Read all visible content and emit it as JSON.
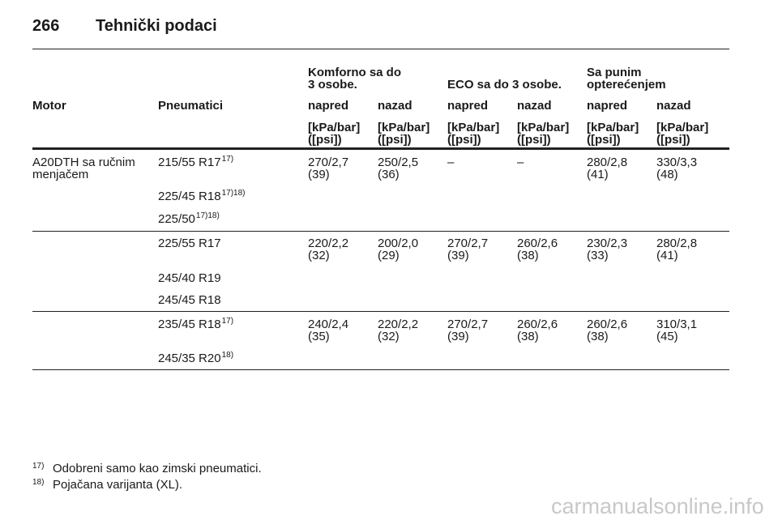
{
  "header": {
    "page_number": "266",
    "title": "Tehnički podaci"
  },
  "table": {
    "group_headers": [
      [
        "Komforno sa do",
        "3 osobe."
      ],
      [
        "ECO sa do 3 osobe."
      ],
      [
        "Sa punim",
        "opterećenjem"
      ]
    ],
    "columns": [
      "Motor",
      "Pneumatici",
      "napred",
      "nazad",
      "napred",
      "nazad",
      "napred",
      "nazad"
    ],
    "units": [
      [
        "[kPa/bar]",
        "([psi])"
      ],
      [
        "[kPa/bar]",
        "([psi])"
      ],
      [
        "[kPa/bar]",
        "([psi])"
      ],
      [
        "[kPa/bar]",
        "([psi])"
      ],
      [
        "[kPa/bar]",
        "([psi])"
      ],
      [
        "[kPa/bar]",
        "([psi])"
      ]
    ],
    "groups": [
      {
        "motor": [
          "A20DTH sa ručnim",
          "menjačem"
        ],
        "tires": [
          {
            "text": "215/55 R17",
            "note": "17)"
          },
          {
            "text": "225/45 R18",
            "note": "17)18)"
          },
          {
            "text": "225/50",
            "note": "17)18)"
          }
        ],
        "values": [
          [
            "270/2,7",
            "(39)"
          ],
          [
            "250/2,5",
            "(36)"
          ],
          [
            "–"
          ],
          [
            "–"
          ],
          [
            "280/2,8",
            "(41)"
          ],
          [
            "330/3,3",
            "(48)"
          ]
        ]
      },
      {
        "tires": [
          {
            "text": "225/55 R17"
          },
          {
            "text": "245/40 R19"
          },
          {
            "text": "245/45 R18"
          }
        ],
        "values": [
          [
            "220/2,2",
            "(32)"
          ],
          [
            "200/2,0",
            "(29)"
          ],
          [
            "270/2,7",
            "(39)"
          ],
          [
            "260/2,6",
            "(38)"
          ],
          [
            "230/2,3",
            "(33)"
          ],
          [
            "280/2,8",
            "(41)"
          ]
        ]
      },
      {
        "tires": [
          {
            "text": "235/45 R18",
            "note": "17)"
          },
          {
            "text": "245/35 R20",
            "note": "18)"
          }
        ],
        "values": [
          [
            "240/2,4",
            "(35)"
          ],
          [
            "220/2,2",
            "(32)"
          ],
          [
            "270/2,7",
            "(39)"
          ],
          [
            "260/2,6",
            "(38)"
          ],
          [
            "260/2,6",
            "(38)"
          ],
          [
            "310/3,1",
            "(45)"
          ]
        ]
      }
    ]
  },
  "footnotes": [
    {
      "mark": "17)",
      "text": "Odobreni samo kao zimski pneumatici."
    },
    {
      "mark": "18)",
      "text": "Pojačana varijanta (XL)."
    }
  ],
  "watermark": "carmanualsonline.info"
}
